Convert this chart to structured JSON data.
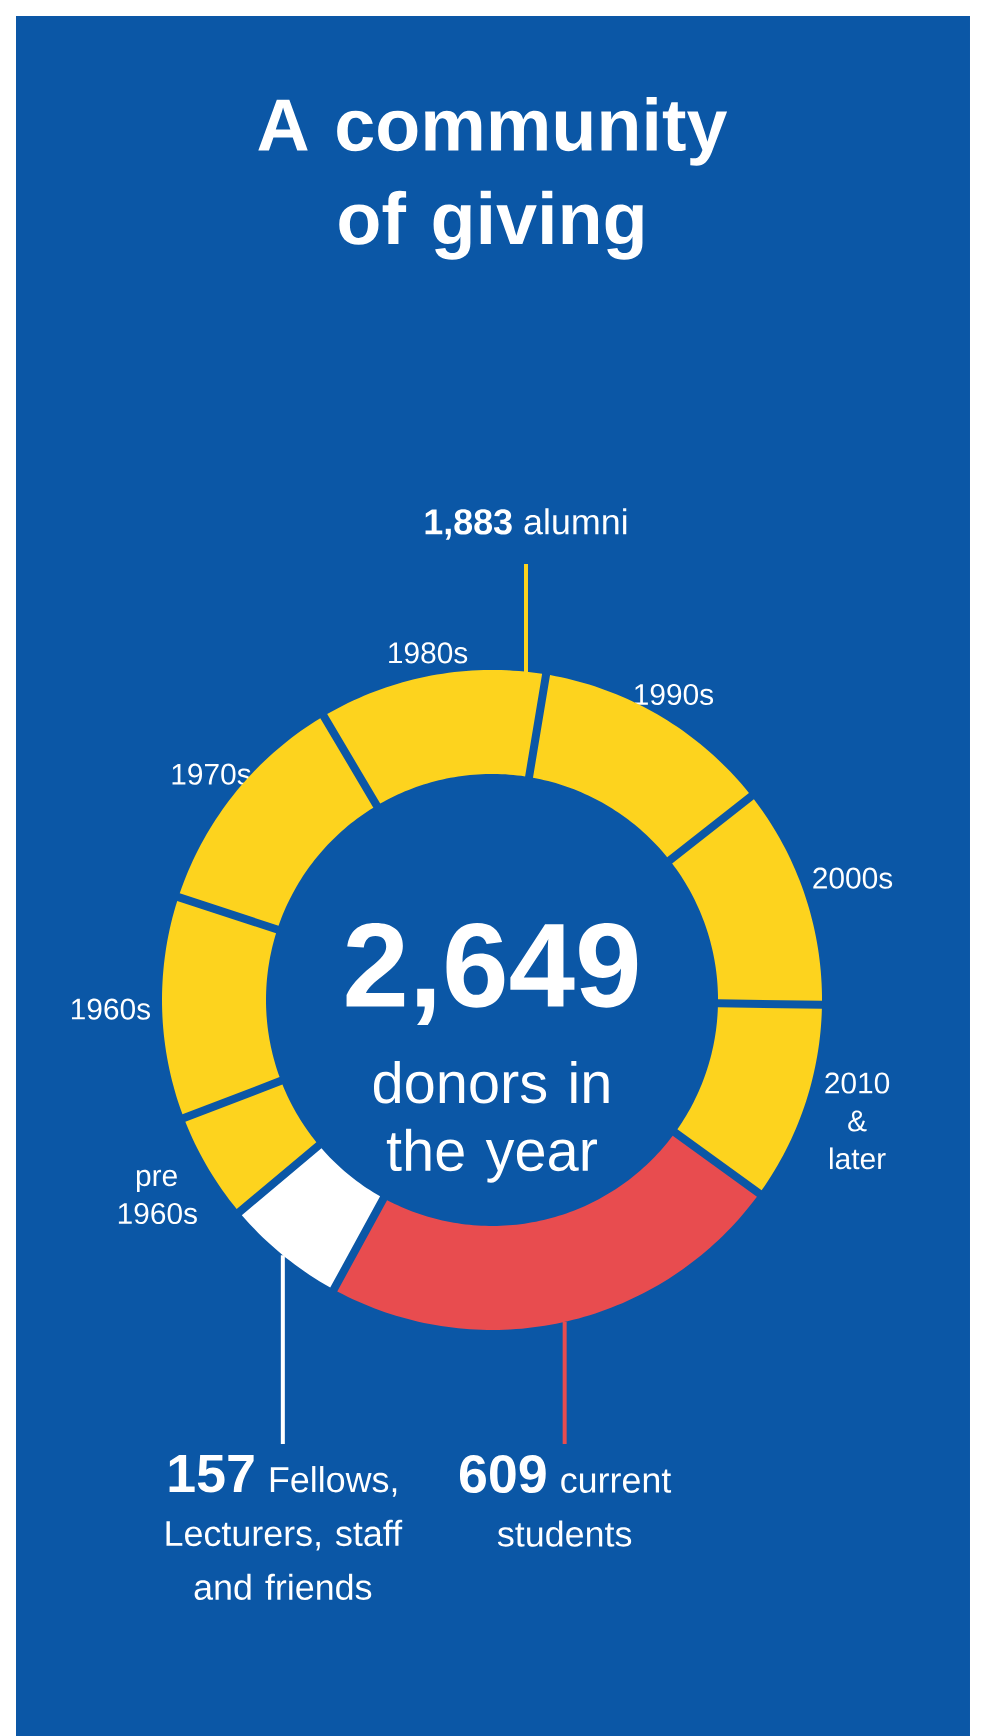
{
  "chart_data": {
    "type": "donut",
    "title": "A community of giving",
    "categories": [
      "pre 1960s",
      "1960s",
      "1970s",
      "1980s",
      "1990s",
      "2000s",
      "2010 & later",
      "current students",
      "Fellows, Lecturers, staff and friends"
    ],
    "values": [
      140,
      288,
      303,
      295,
      312,
      287,
      258,
      609,
      157
    ],
    "colors": [
      "#fdd31e",
      "#fdd31e",
      "#fdd31e",
      "#fdd31e",
      "#fdd31e",
      "#fdd31e",
      "#fdd31e",
      "#e84c4f",
      "#ffffff"
    ],
    "value_labels": [
      null,
      null,
      null,
      null,
      null,
      null,
      null,
      "609",
      "157"
    ],
    "annotations": [
      "**1,883** alumni",
      "2,649",
      "donors in the year"
    ]
  }
}
